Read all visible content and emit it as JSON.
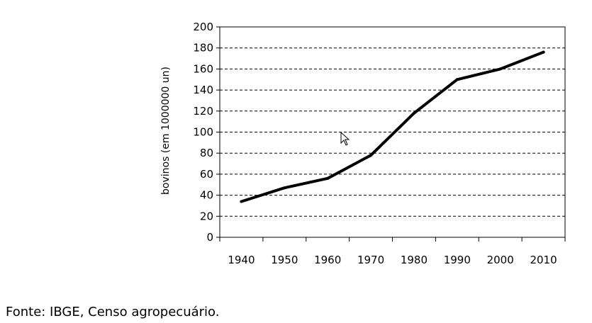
{
  "chart_data": {
    "type": "line",
    "title": "",
    "xlabel": "",
    "ylabel": "bovinos (em 1000000 un)",
    "x_ticks": [
      "1940",
      "1950",
      "1960",
      "1970",
      "1980",
      "1990",
      "2000",
      "2010"
    ],
    "ylim": [
      0,
      200
    ],
    "y_ticks": [
      0,
      20,
      40,
      60,
      80,
      100,
      120,
      140,
      160,
      180,
      200
    ],
    "grid": "horizontal-dashed",
    "series": [
      {
        "values": [
          34,
          47,
          56,
          78,
          118,
          150,
          160,
          176
        ],
        "color": "#000000"
      }
    ]
  },
  "source": "Fonte: IBGE, Censo agropecuário.",
  "cursor": "mouse-pointer-icon"
}
